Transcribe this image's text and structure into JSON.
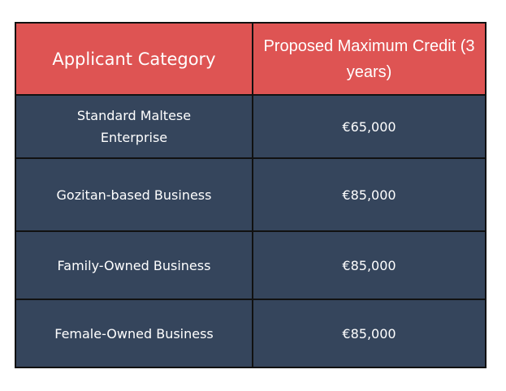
{
  "table": {
    "headers": [
      "Applicant Category",
      "Proposed Maximum Credit (3 years)"
    ],
    "rows": [
      {
        "category": "Standard Maltese Enterprise",
        "credit": "€65,000"
      },
      {
        "category": "Gozitan-based Business",
        "credit": "€85,000"
      },
      {
        "category": "Family-Owned Business",
        "credit": "€85,000"
      },
      {
        "category": "Female-Owned Business",
        "credit": "€85,000"
      }
    ]
  },
  "colors": {
    "header_bg": "#DE5453",
    "body_bg": "#35455C",
    "border": "#111111",
    "text": "#FFFFFF"
  }
}
